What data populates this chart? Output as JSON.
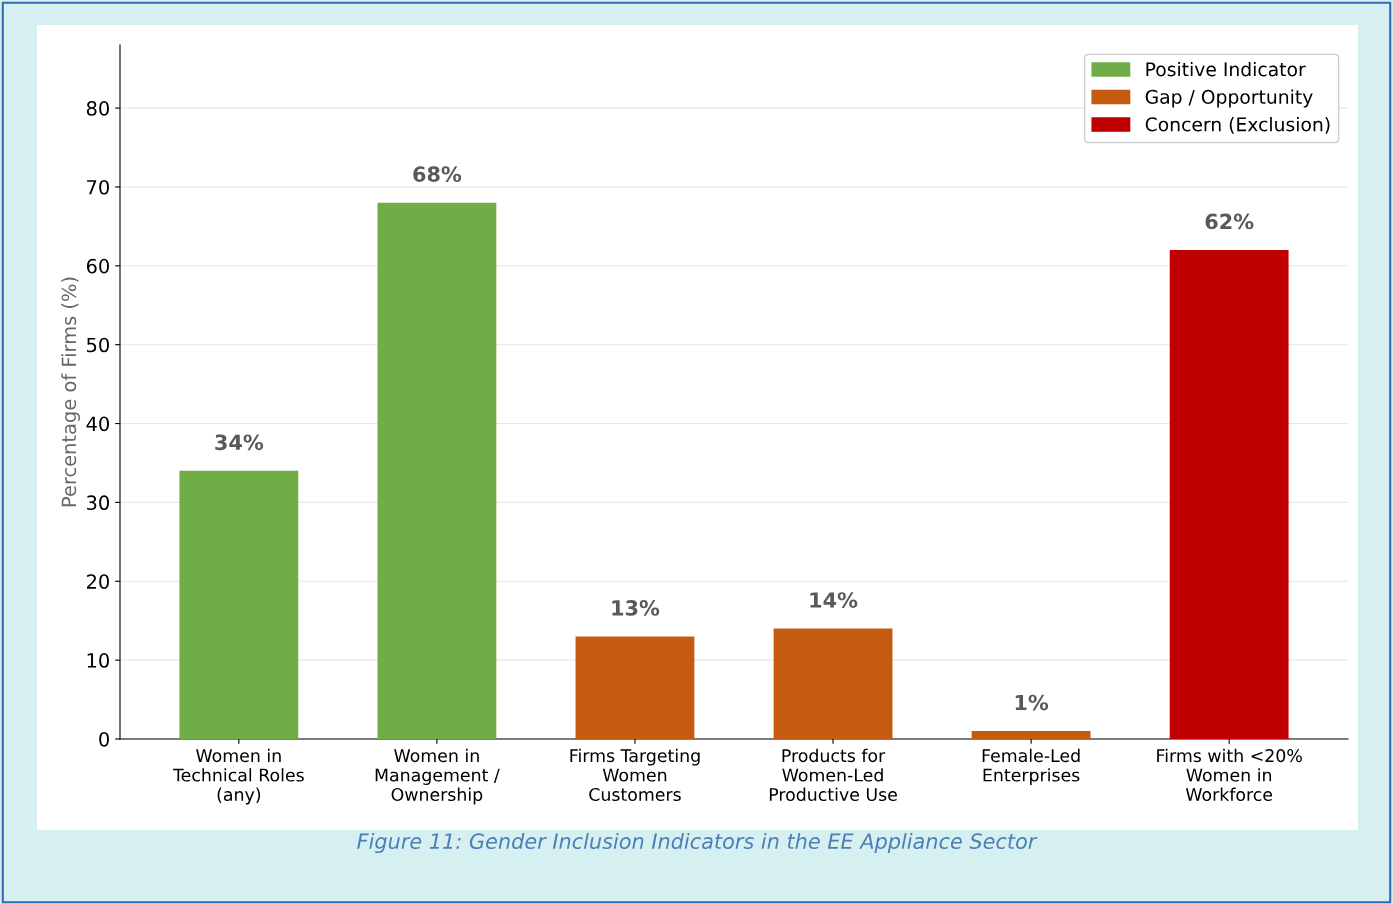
{
  "chart_data": {
    "type": "bar",
    "stacked": true,
    "ylabel": "Percentage of Firms (%)",
    "categories": [
      "Women in\nTechnical Roles\n(any)",
      "Women in\nManagement /\nOwnership",
      "Firms Targeting\nWomen\nCustomers",
      "Products for\nWomen-Led\nProductive Use",
      "Female-Led\nEnterprises",
      "Firms with <20%\nWomen in\nWorkforce"
    ],
    "series": [
      {
        "name": "Positive Indicator",
        "color": "#70ad47",
        "values": [
          34,
          68,
          null,
          null,
          null,
          null
        ],
        "value_labels": [
          "34%",
          "68%",
          null,
          null,
          null,
          null
        ]
      },
      {
        "name": "Gap / Opportunity",
        "color": "#c55a11",
        "values": [
          null,
          null,
          13,
          14,
          1,
          null
        ],
        "value_labels": [
          null,
          null,
          "13%",
          "14%",
          "1%",
          null
        ]
      },
      {
        "name": "Concern (Exclusion)",
        "color": "#c00000",
        "values": [
          null,
          null,
          null,
          null,
          null,
          62
        ],
        "value_labels": [
          null,
          null,
          null,
          null,
          null,
          "62%"
        ]
      }
    ],
    "ylim": [
      0,
      88
    ],
    "yticks": [
      0,
      10,
      20,
      30,
      40,
      50,
      60,
      70,
      80
    ],
    "grid": "y",
    "legend": "top right",
    "annotations": [
      "Figure 11: Gender Inclusion Indicators in the EE Appliance Sector"
    ]
  }
}
